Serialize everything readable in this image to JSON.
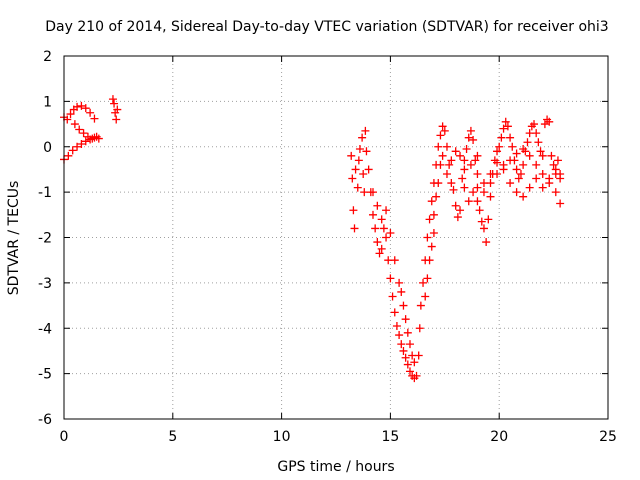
{
  "chart_data": {
    "type": "scatter",
    "title": "Day 210 of 2014, Sidereal Day-to-day VTEC variation (SDTVAR) for receiver ohi3",
    "xlabel": "GPS time / hours",
    "ylabel": "SDTVAR / TECUs",
    "xlim": [
      0,
      25
    ],
    "ylim": [
      -6,
      2
    ],
    "xticks": [
      0,
      5,
      10,
      15,
      20,
      25
    ],
    "yticks": [
      -6,
      -5,
      -4,
      -3,
      -2,
      -1,
      0,
      1,
      2
    ],
    "xtick_labels": [
      "0",
      "5",
      "10",
      "15",
      "20",
      "25"
    ],
    "ytick_labels": [
      "-6",
      "-5",
      "-4",
      "-3",
      "-2",
      "-1",
      "0",
      "1",
      "2"
    ],
    "grid": true,
    "grid_style": "dotted",
    "marker": "plus",
    "color": "#ff0000",
    "series": [
      {
        "points": [
          [
            0.0,
            -0.28
          ],
          [
            0.2,
            -0.2
          ],
          [
            0.4,
            -0.08
          ],
          [
            0.6,
            0.0
          ],
          [
            0.8,
            0.06
          ],
          [
            1.0,
            0.12
          ],
          [
            1.2,
            0.16
          ],
          [
            1.4,
            0.2
          ],
          [
            1.6,
            0.18
          ],
          [
            0.0,
            0.65
          ],
          [
            0.15,
            0.6
          ],
          [
            0.3,
            0.72
          ],
          [
            0.45,
            0.82
          ],
          [
            0.6,
            0.88
          ],
          [
            0.8,
            0.9
          ],
          [
            1.0,
            0.85
          ],
          [
            1.2,
            0.75
          ],
          [
            1.4,
            0.62
          ],
          [
            0.5,
            0.5
          ],
          [
            0.7,
            0.38
          ],
          [
            0.9,
            0.3
          ],
          [
            1.1,
            0.22
          ],
          [
            1.3,
            0.18
          ],
          [
            1.5,
            0.22
          ],
          [
            2.25,
            1.05
          ],
          [
            2.3,
            0.95
          ],
          [
            2.35,
            0.75
          ],
          [
            2.4,
            0.6
          ],
          [
            2.45,
            0.82
          ],
          [
            13.2,
            -0.2
          ],
          [
            13.25,
            -0.7
          ],
          [
            13.3,
            -1.4
          ],
          [
            13.35,
            -1.8
          ],
          [
            13.4,
            -0.5
          ],
          [
            13.5,
            -0.9
          ],
          [
            13.55,
            -0.3
          ],
          [
            13.6,
            -0.05
          ],
          [
            13.7,
            0.2
          ],
          [
            13.75,
            -0.6
          ],
          [
            13.8,
            -1.0
          ],
          [
            13.85,
            0.35
          ],
          [
            13.9,
            -0.1
          ],
          [
            14.0,
            -0.5
          ],
          [
            14.1,
            -1.0
          ],
          [
            14.2,
            -1.5
          ],
          [
            14.3,
            -1.8
          ],
          [
            14.4,
            -2.1
          ],
          [
            14.5,
            -2.35
          ],
          [
            14.6,
            -2.25
          ],
          [
            14.7,
            -1.8
          ],
          [
            14.8,
            -2.0
          ],
          [
            14.9,
            -2.5
          ],
          [
            15.0,
            -2.9
          ],
          [
            15.1,
            -3.3
          ],
          [
            15.2,
            -3.65
          ],
          [
            15.3,
            -3.95
          ],
          [
            15.4,
            -4.15
          ],
          [
            15.5,
            -4.35
          ],
          [
            15.6,
            -4.5
          ],
          [
            15.7,
            -4.65
          ],
          [
            15.8,
            -4.8
          ],
          [
            15.9,
            -4.95
          ],
          [
            16.0,
            -5.05
          ],
          [
            16.1,
            -5.1
          ],
          [
            16.2,
            -5.05
          ],
          [
            16.3,
            -4.6
          ],
          [
            16.35,
            -4.0
          ],
          [
            16.4,
            -3.5
          ],
          [
            16.5,
            -3.0
          ],
          [
            16.6,
            -2.5
          ],
          [
            16.7,
            -2.0
          ],
          [
            16.8,
            -1.6
          ],
          [
            16.9,
            -1.2
          ],
          [
            17.0,
            -0.8
          ],
          [
            17.1,
            -0.4
          ],
          [
            17.2,
            0.0
          ],
          [
            17.3,
            0.25
          ],
          [
            17.4,
            0.45
          ],
          [
            17.5,
            0.35
          ],
          [
            17.6,
            0.0
          ],
          [
            17.7,
            -0.4
          ],
          [
            17.8,
            -0.8
          ],
          [
            17.9,
            -0.95
          ],
          [
            18.0,
            -1.3
          ],
          [
            18.1,
            -1.55
          ],
          [
            18.2,
            -1.4
          ],
          [
            18.3,
            -0.7
          ],
          [
            18.4,
            -0.3
          ],
          [
            18.5,
            -0.05
          ],
          [
            18.6,
            0.2
          ],
          [
            18.7,
            0.35
          ],
          [
            18.8,
            0.15
          ],
          [
            18.9,
            -0.3
          ],
          [
            19.0,
            -0.9
          ],
          [
            19.1,
            -1.4
          ],
          [
            19.2,
            -1.65
          ],
          [
            19.3,
            -1.8
          ],
          [
            19.4,
            -2.1
          ],
          [
            19.5,
            -1.6
          ],
          [
            19.6,
            -1.1
          ],
          [
            19.7,
            -0.6
          ],
          [
            19.8,
            -0.3
          ],
          [
            19.9,
            -0.1
          ],
          [
            20.0,
            0.0
          ],
          [
            20.1,
            0.2
          ],
          [
            20.2,
            0.4
          ],
          [
            20.3,
            0.55
          ],
          [
            20.4,
            0.45
          ],
          [
            20.5,
            0.2
          ],
          [
            20.6,
            0.0
          ],
          [
            20.7,
            -0.3
          ],
          [
            20.8,
            -0.5
          ],
          [
            20.9,
            -0.7
          ],
          [
            21.0,
            -0.6
          ],
          [
            21.1,
            -0.4
          ],
          [
            21.2,
            -0.1
          ],
          [
            21.3,
            0.1
          ],
          [
            21.4,
            0.3
          ],
          [
            21.5,
            0.45
          ],
          [
            21.6,
            0.5
          ],
          [
            21.7,
            0.3
          ],
          [
            21.8,
            0.1
          ],
          [
            21.9,
            -0.1
          ],
          [
            22.0,
            -0.2
          ],
          [
            22.1,
            0.5
          ],
          [
            22.2,
            0.6
          ],
          [
            22.3,
            0.55
          ],
          [
            22.4,
            -0.2
          ],
          [
            22.5,
            -0.4
          ],
          [
            22.6,
            -0.5
          ],
          [
            22.7,
            -0.3
          ],
          [
            22.8,
            -0.6
          ],
          [
            19.0,
            -1.2
          ],
          [
            19.3,
            -1.0
          ],
          [
            19.6,
            -0.8
          ],
          [
            19.9,
            -0.6
          ],
          [
            20.2,
            -0.4
          ],
          [
            20.5,
            -0.3
          ],
          [
            20.8,
            -0.15
          ],
          [
            21.1,
            -0.05
          ],
          [
            21.4,
            -0.2
          ],
          [
            21.7,
            -0.4
          ],
          [
            22.0,
            -0.6
          ],
          [
            22.3,
            -0.8
          ],
          [
            22.6,
            -1.0
          ],
          [
            22.8,
            -1.25
          ],
          [
            18.4,
            -0.5
          ],
          [
            18.7,
            -0.4
          ],
          [
            19.0,
            -0.6
          ],
          [
            19.3,
            -0.8
          ],
          [
            19.6,
            -0.6
          ],
          [
            19.9,
            -0.35
          ],
          [
            20.2,
            -0.5
          ],
          [
            20.5,
            -0.8
          ],
          [
            20.8,
            -1.0
          ],
          [
            21.1,
            -1.1
          ],
          [
            21.4,
            -0.9
          ],
          [
            21.7,
            -0.7
          ],
          [
            22.0,
            -0.9
          ],
          [
            22.3,
            -0.7
          ],
          [
            22.6,
            -0.6
          ],
          [
            22.8,
            -0.7
          ],
          [
            17.6,
            -0.6
          ],
          [
            17.8,
            -0.3
          ],
          [
            18.0,
            -0.1
          ],
          [
            18.2,
            -0.2
          ],
          [
            18.4,
            -0.9
          ],
          [
            18.6,
            -1.2
          ],
          [
            18.8,
            -1.0
          ],
          [
            19.0,
            -0.2
          ],
          [
            17.0,
            -1.5
          ],
          [
            17.1,
            -1.1
          ],
          [
            17.2,
            -0.8
          ],
          [
            17.3,
            -0.4
          ],
          [
            17.4,
            -0.2
          ],
          [
            16.6,
            -3.3
          ],
          [
            16.7,
            -2.9
          ],
          [
            16.8,
            -2.5
          ],
          [
            16.9,
            -2.2
          ],
          [
            17.0,
            -1.9
          ],
          [
            15.5,
            -3.2
          ],
          [
            15.6,
            -3.5
          ],
          [
            15.7,
            -3.8
          ],
          [
            15.8,
            -4.1
          ],
          [
            15.9,
            -4.35
          ],
          [
            16.0,
            -4.6
          ],
          [
            16.1,
            -4.75
          ],
          [
            14.2,
            -1.0
          ],
          [
            14.4,
            -1.3
          ],
          [
            14.6,
            -1.6
          ],
          [
            14.8,
            -1.4
          ],
          [
            15.0,
            -1.9
          ],
          [
            15.2,
            -2.5
          ],
          [
            15.4,
            -3.0
          ]
        ]
      }
    ]
  }
}
